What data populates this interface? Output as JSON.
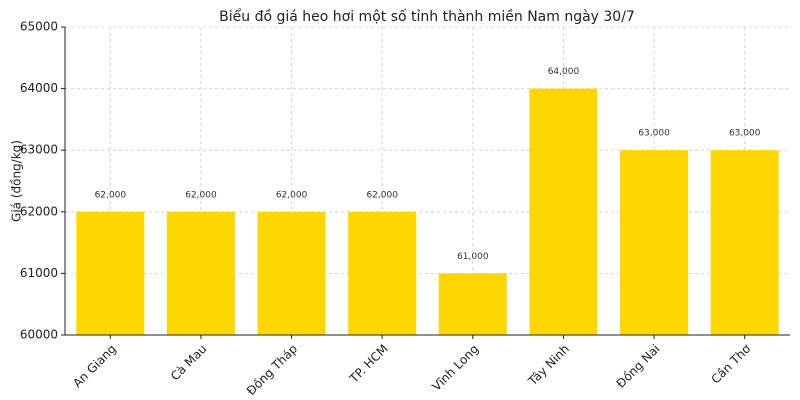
{
  "chart_data": {
    "type": "bar",
    "title": "Biểu đồ giá heo hơi một số tỉnh thành miền Nam ngày 30/7",
    "y_label": "Giá (đồng/kg)",
    "categories": [
      "An Giang",
      "Cà Mau",
      "Đồng Tháp",
      "TP. HCM",
      "Vĩnh Long",
      "Tây Ninh",
      "Đồng Nai",
      "Cần Thơ"
    ],
    "values": [
      62000,
      62000,
      62000,
      62000,
      61000,
      64000,
      63000,
      63000
    ],
    "value_labels": [
      "62,000",
      "62,000",
      "62,000",
      "62,000",
      "61,000",
      "64,000",
      "63,000",
      "63,000"
    ],
    "color": "#ffd700",
    "ylim": [
      60000,
      65000
    ],
    "yticks": [
      60000,
      61000,
      62000,
      63000,
      64000,
      65000
    ],
    "grid": true
  }
}
